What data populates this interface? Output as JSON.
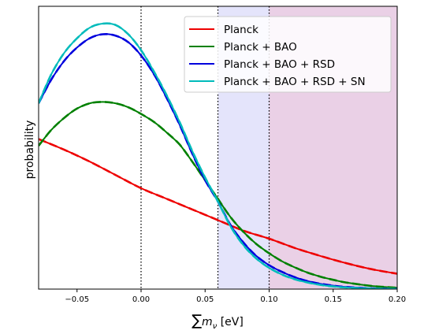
{
  "chart_data": {
    "type": "line",
    "xlabel": "∑m_ν [eV]",
    "xlabel_parts": {
      "symbol": "∑",
      "var": "m",
      "sub": "ν",
      "unit": "[eV]"
    },
    "ylabel": "probability",
    "xlim": [
      -0.08,
      0.2
    ],
    "ylim": [
      0,
      1
    ],
    "x_ticks": [
      -0.05,
      0.0,
      0.05,
      0.1,
      0.15,
      0.2
    ],
    "x_tick_labels": [
      "−0.05",
      "0.00",
      "0.05",
      "0.10",
      "0.15",
      "0.20"
    ],
    "y_ticks_shown": false,
    "grid": false,
    "legend_position": "top-right",
    "vlines": [
      {
        "x": 0.0,
        "style": "dotted"
      },
      {
        "x": 0.06,
        "style": "dotted"
      },
      {
        "x": 0.1,
        "style": "dotted"
      }
    ],
    "shaded_regions": [
      {
        "x0": 0.06,
        "x1": 0.1,
        "color": "#e4e4fb"
      },
      {
        "x0": 0.1,
        "x1": 0.2,
        "color": "#ead0e6"
      }
    ],
    "series": [
      {
        "name": "Planck",
        "color": "#ee0000",
        "x": [
          -0.08,
          -0.06,
          -0.04,
          -0.02,
          0.0,
          0.02,
          0.04,
          0.06,
          0.08,
          0.1,
          0.12,
          0.14,
          0.16,
          0.18,
          0.2
        ],
        "y": [
          0.565,
          0.525,
          0.48,
          0.43,
          0.38,
          0.34,
          0.3,
          0.26,
          0.22,
          0.19,
          0.155,
          0.125,
          0.098,
          0.075,
          0.058
        ]
      },
      {
        "name": "Planck + BAO",
        "color": "#008000",
        "x": [
          -0.08,
          -0.07,
          -0.06,
          -0.05,
          -0.04,
          -0.03,
          -0.02,
          -0.01,
          0.0,
          0.01,
          0.02,
          0.03,
          0.04,
          0.05,
          0.06,
          0.07,
          0.08,
          0.09,
          0.1,
          0.11,
          0.12,
          0.13,
          0.14,
          0.15,
          0.16,
          0.18,
          0.2
        ],
        "y": [
          0.54,
          0.6,
          0.645,
          0.68,
          0.7,
          0.705,
          0.7,
          0.685,
          0.66,
          0.63,
          0.59,
          0.545,
          0.48,
          0.41,
          0.34,
          0.27,
          0.215,
          0.17,
          0.135,
          0.105,
          0.082,
          0.062,
          0.047,
          0.035,
          0.025,
          0.012,
          0.005
        ]
      },
      {
        "name": "Planck + BAO + RSD",
        "color": "#0000dd",
        "x": [
          -0.08,
          -0.07,
          -0.06,
          -0.05,
          -0.04,
          -0.03,
          -0.02,
          -0.01,
          0.0,
          0.01,
          0.02,
          0.03,
          0.04,
          0.05,
          0.06,
          0.07,
          0.08,
          0.09,
          0.1,
          0.11,
          0.12,
          0.13,
          0.14,
          0.15,
          0.16,
          0.18,
          0.2
        ],
        "y": [
          0.7,
          0.79,
          0.86,
          0.91,
          0.945,
          0.96,
          0.955,
          0.93,
          0.88,
          0.81,
          0.72,
          0.62,
          0.51,
          0.41,
          0.33,
          0.24,
          0.175,
          0.125,
          0.09,
          0.065,
          0.045,
          0.03,
          0.02,
          0.013,
          0.008,
          0.003,
          0.001
        ]
      },
      {
        "name": "Planck + BAO + RSD + SN",
        "color": "#00bbbb",
        "x": [
          -0.08,
          -0.07,
          -0.06,
          -0.05,
          -0.04,
          -0.03,
          -0.02,
          -0.01,
          0.0,
          0.01,
          0.02,
          0.03,
          0.04,
          0.05,
          0.06,
          0.07,
          0.08,
          0.09,
          0.1,
          0.11,
          0.12,
          0.13,
          0.14,
          0.15,
          0.16,
          0.18,
          0.2
        ],
        "y": [
          0.7,
          0.81,
          0.89,
          0.945,
          0.985,
          1.0,
          0.995,
          0.96,
          0.9,
          0.82,
          0.73,
          0.63,
          0.52,
          0.42,
          0.33,
          0.235,
          0.165,
          0.115,
          0.08,
          0.055,
          0.037,
          0.025,
          0.016,
          0.01,
          0.006,
          0.002,
          0.001
        ]
      }
    ]
  }
}
